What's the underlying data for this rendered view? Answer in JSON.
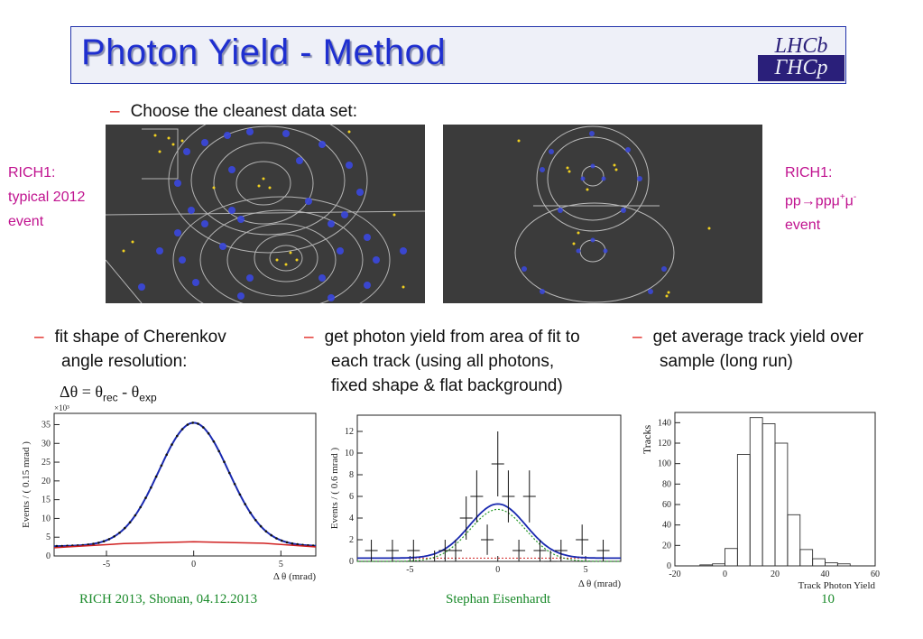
{
  "title": "Photon Yield - Method",
  "logo": {
    "text_top": "LHCb",
    "text_bottom": "ГНСр"
  },
  "bullets": {
    "main": "Choose the cleanest data set:",
    "left": [
      "fit shape of Cherenkov",
      "angle resolution:"
    ],
    "middle": [
      "get photon yield from area of fit to",
      "each track (using all photons,",
      "fixed shape & flat background)"
    ],
    "right": [
      "get average track yield over",
      "sample (long run)"
    ]
  },
  "formula": {
    "delta_theta": "Δθ",
    "eq": " = ",
    "theta": "θ",
    "rec": "rec",
    "minus": " - ",
    "exp": "exp"
  },
  "side_labels": {
    "left": [
      "RICH1:",
      "typical 2012",
      "event"
    ],
    "right_line1": "RICH1:",
    "right_line2_base": "pp",
    "right_line2_arrow": "→",
    "right_line2_rest": "ppμ",
    "right_sup_plus": "+",
    "right_mu": "μ",
    "right_sup_minus": "-",
    "right_line3": "event"
  },
  "footer": {
    "left": "RICH 2013, Shonan, 04.12.2013",
    "center": "Stephan Eisenhardt",
    "page": "10"
  },
  "colors": {
    "title": "#1f2fd0",
    "dash": "#e0201a",
    "label": "#c0128f",
    "footer": "#1a8a2a",
    "event_bg": "#3b3b3b"
  },
  "chart_data": [
    {
      "type": "line",
      "xlabel": "Δ θ (mrad)",
      "ylabel": "Events / ( 0.15 mrad )",
      "multiplier": "×10³",
      "xlim": [
        -8,
        7
      ],
      "ylim": [
        0,
        38
      ],
      "xticks": [
        -5,
        0,
        5
      ],
      "yticks": [
        0,
        5,
        10,
        15,
        20,
        25,
        30,
        35
      ],
      "series": [
        {
          "role": "fit",
          "color": "#1a2ab0",
          "peak": 35.5,
          "mean": 0,
          "sigma": 2.0,
          "background": 3.0,
          "bg_slope": 0.05
        },
        {
          "role": "background",
          "color": "#d02020",
          "points": [
            [
              -8,
              2.2
            ],
            [
              -4,
              3.3
            ],
            [
              0,
              3.8
            ],
            [
              4,
              3.4
            ],
            [
              7,
              2.4
            ]
          ]
        }
      ]
    },
    {
      "type": "scatter",
      "xlabel": "Δ θ (mrad)",
      "ylabel": "Events / ( 0.6 mrad )",
      "xlim": [
        -8,
        7
      ],
      "ylim": [
        0,
        13.5
      ],
      "xticks": [
        -5,
        0,
        5
      ],
      "yticks": [
        0,
        2,
        4,
        6,
        8,
        10,
        12
      ],
      "x": [
        -7.2,
        -6.0,
        -4.8,
        -3.6,
        -3.0,
        -2.4,
        -1.8,
        -1.2,
        -0.6,
        0.0,
        0.6,
        1.2,
        1.8,
        2.4,
        3.0,
        3.6,
        4.8,
        6.0
      ],
      "y": [
        1,
        1,
        1,
        0,
        1,
        1,
        4,
        6,
        2,
        9,
        6,
        1,
        6,
        1,
        0,
        1,
        2,
        1
      ],
      "err": [
        1,
        1,
        1,
        1,
        1,
        1,
        2,
        2.4,
        1.4,
        3,
        2.4,
        1,
        2.4,
        1,
        1,
        1,
        1.4,
        1
      ],
      "series": [
        {
          "role": "fit",
          "color": "#1a2ab0",
          "peak": 5.0,
          "mean": 0,
          "sigma": 1.6,
          "background": 0.3
        },
        {
          "role": "signal",
          "color": "#2a9a2a",
          "peak": 4.8,
          "mean": 0,
          "sigma": 1.6
        },
        {
          "role": "background",
          "color": "#d02020",
          "level": 0.3
        }
      ]
    },
    {
      "type": "bar",
      "xlabel": "Track Photon Yield",
      "ylabel": "Tracks",
      "xlim": [
        -20,
        60
      ],
      "ylim": [
        0,
        150
      ],
      "xticks": [
        -20,
        0,
        20,
        40,
        60
      ],
      "yticks": [
        0,
        20,
        40,
        60,
        80,
        100,
        120,
        140
      ],
      "bin_width": 5,
      "bin_edges_start": -20,
      "values": [
        0,
        0,
        1,
        2,
        17,
        109,
        145,
        139,
        120,
        50,
        16,
        7,
        3,
        2,
        0,
        0
      ]
    }
  ]
}
